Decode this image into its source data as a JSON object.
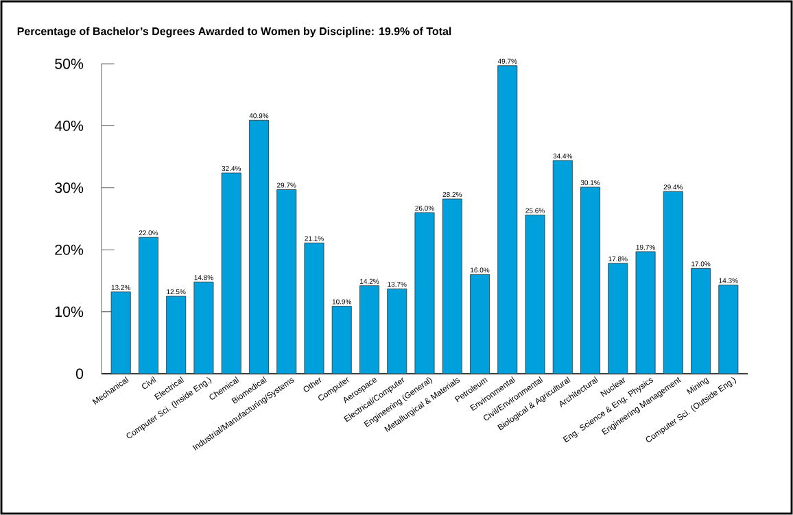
{
  "chart_data": {
    "type": "bar",
    "title": "Percentage of Bachelor’s Degrees Awarded to Women by Discipline: 19.9% of Total",
    "categories": [
      "Mechanical",
      "Civil",
      "Electrical",
      "Computer Sci. (Inside Eng.)",
      "Chemical",
      "Biomedical",
      "Industrial/Manufacturing/Systems",
      "Other",
      "Computer",
      "Aerospace",
      "Electrical/Computer",
      "Engineering (General)",
      "Metallurgical & Materials",
      "Petroleum",
      "Environmental",
      "Civil/Environmental",
      "Biological & Agricultural",
      "Architectural",
      "Nuclear",
      "Eng. Science & Eng. Physics",
      "Engineering Management",
      "Mining",
      "Computer Sci. (Outside Eng.)"
    ],
    "values": [
      13.2,
      22.0,
      12.5,
      14.8,
      32.4,
      40.9,
      29.7,
      21.1,
      10.9,
      14.2,
      13.7,
      26.0,
      28.2,
      16.0,
      49.7,
      25.6,
      34.4,
      30.1,
      17.8,
      19.7,
      29.4,
      17.0,
      14.3
    ],
    "value_labels": [
      "13.2%",
      "22.0%",
      "12.5%",
      "14.8%",
      "32.4%",
      "40.9%",
      "29.7%",
      "21.1%",
      "10.9%",
      "14.2%",
      "13.7%",
      "26.0%",
      "28.2%",
      "16.0%",
      "49.7%",
      "25.6%",
      "34.4%",
      "30.1%",
      "17.8%",
      "19.7%",
      "29.4%",
      "17.0%",
      "14.3%"
    ],
    "color": "#00a0dc",
    "ylim": [
      0,
      50
    ],
    "yticks": [
      0,
      {
        "value": 10,
        "label": "10%"
      },
      {
        "value": 20,
        "label": "20%"
      },
      {
        "value": 30,
        "label": "30%"
      },
      {
        "value": 40,
        "label": "40%"
      },
      {
        "value": 50,
        "label": "50%"
      }
    ]
  }
}
